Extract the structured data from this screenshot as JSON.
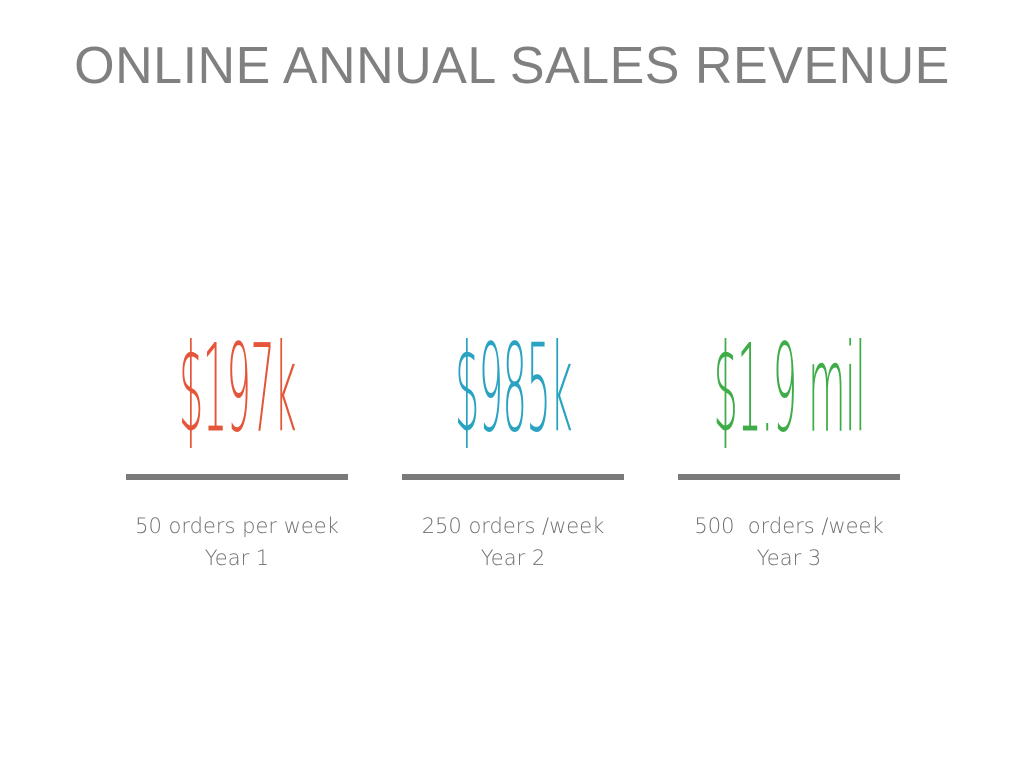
{
  "slide": {
    "title": "ONLINE ANNUAL SALES REVENUE"
  },
  "stats": [
    {
      "value": "$197k",
      "orders": "50 orders per week",
      "year": "Year 1",
      "color": "#e4553a"
    },
    {
      "value": "$985k",
      "orders": "250 orders /week",
      "year": "Year 2",
      "color": "#29a3c1"
    },
    {
      "value": "$1.9 mil",
      "orders": "500  orders /week",
      "year": "Year 3",
      "color": "#3fac4a"
    }
  ],
  "colors": {
    "title": "#808080",
    "rule": "#7a7a7a",
    "caption": "#6f6f6f"
  }
}
